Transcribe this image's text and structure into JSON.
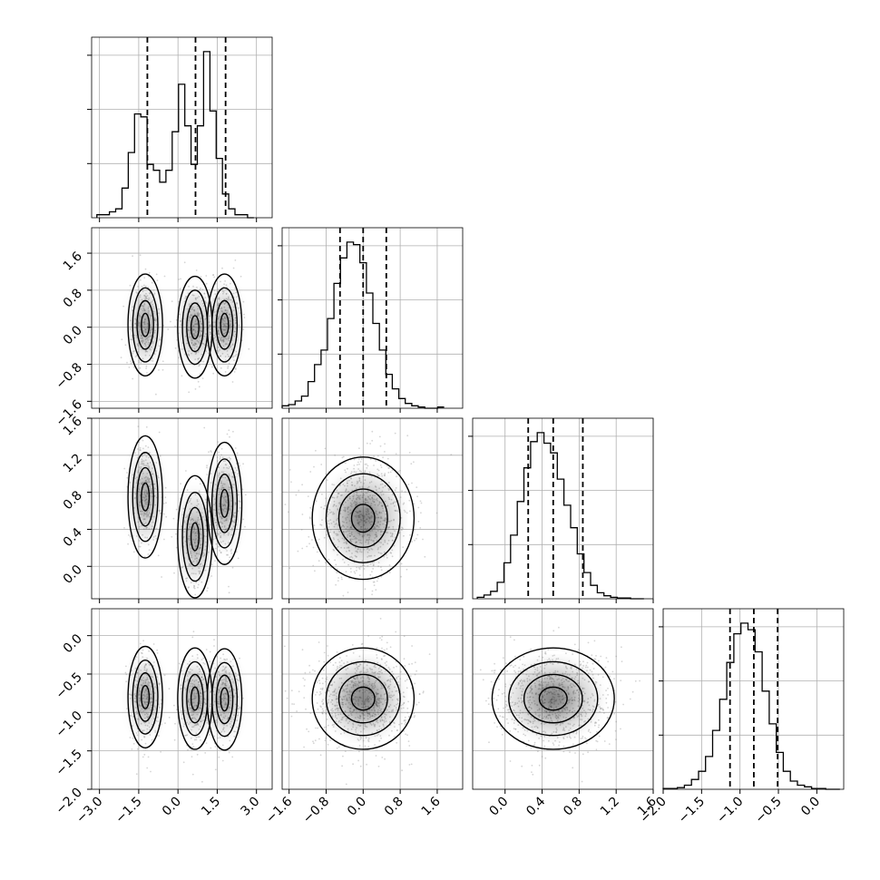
{
  "chart_data": {
    "type": "corner",
    "grid": true,
    "colors": {
      "line": "#000000",
      "grid": "#b0b0b0",
      "scatter": "#888888",
      "density": "#000000"
    },
    "params": [
      {
        "range": [
          -3.3,
          3.6
        ],
        "ticks": [
          -3.0,
          -1.5,
          0.0,
          1.5,
          3.0
        ],
        "tick_labels": [
          "−3.0",
          "−1.5",
          "0.0",
          "1.5",
          "3.0"
        ],
        "quantiles": [
          -1.17,
          0.67,
          1.82
        ]
      },
      {
        "range": [
          -1.75,
          2.15
        ],
        "ticks": [
          -1.6,
          -0.8,
          0.0,
          0.8,
          1.6
        ],
        "tick_labels": [
          "−1.6",
          "−0.8",
          "0.0",
          "0.8",
          "1.6"
        ],
        "quantiles": [
          -0.5,
          0.0,
          0.5
        ]
      },
      {
        "range": [
          -0.35,
          1.6
        ],
        "ticks": [
          0.0,
          0.4,
          0.8,
          1.2,
          1.6
        ],
        "tick_labels": [
          "0.0",
          "0.4",
          "0.8",
          "1.2",
          "1.6"
        ],
        "quantiles": [
          0.25,
          0.52,
          0.84
        ]
      },
      {
        "range": [
          -2.0,
          0.35
        ],
        "ticks": [
          -2.0,
          -1.5,
          -1.0,
          -0.5,
          0.0
        ],
        "tick_labels": [
          "−2.0",
          "−1.5",
          "−1.0",
          "−0.5",
          "0.0"
        ],
        "quantiles": [
          -1.13,
          -0.82,
          -0.51
        ]
      }
    ],
    "histograms": [
      {
        "bins": [
          -3.1,
          2.9
        ],
        "counts": [
          1,
          1,
          2,
          3,
          10,
          22,
          35,
          34,
          18,
          16,
          12,
          16,
          29,
          45,
          31,
          18,
          31,
          56,
          36,
          20,
          8,
          3,
          1,
          1,
          0
        ]
      },
      {
        "bins": [
          -1.75,
          1.75
        ],
        "counts": [
          2,
          3,
          6,
          10,
          22,
          36,
          48,
          74,
          103,
          124,
          137,
          135,
          120,
          95,
          70,
          48,
          28,
          16,
          8,
          4,
          2,
          1,
          0,
          0,
          1
        ]
      },
      {
        "bins": [
          -0.3,
          1.5
        ],
        "counts": [
          2,
          5,
          10,
          22,
          48,
          85,
          130,
          175,
          210,
          222,
          208,
          195,
          160,
          125,
          95,
          60,
          35,
          18,
          8,
          4,
          2,
          1,
          1,
          0,
          0
        ]
      },
      {
        "bins": [
          -2.0,
          0.3
        ],
        "counts": [
          1,
          1,
          2,
          5,
          12,
          22,
          40,
          72,
          110,
          155,
          190,
          203,
          195,
          168,
          120,
          80,
          45,
          22,
          10,
          5,
          3,
          1,
          1,
          0,
          0
        ]
      }
    ],
    "components": {
      "0": {
        "centers": [
          -1.25,
          0.65,
          1.78
        ],
        "sd": 0.3,
        "weights": [
          0.34,
          0.3,
          0.36
        ]
      },
      "1": {
        "mean": 0.0,
        "sd": 0.5
      },
      "2": {
        "mean": 0.52,
        "sd": 0.3
      },
      "3": {
        "mean": -0.82,
        "sd": 0.3
      }
    },
    "pair_centers": {
      "1": [
        0.05,
        0.0,
        0.05
      ],
      "2": [
        0.75,
        0.32,
        0.68
      ],
      "3": [
        -0.8,
        -0.82,
        -0.83
      ]
    }
  }
}
